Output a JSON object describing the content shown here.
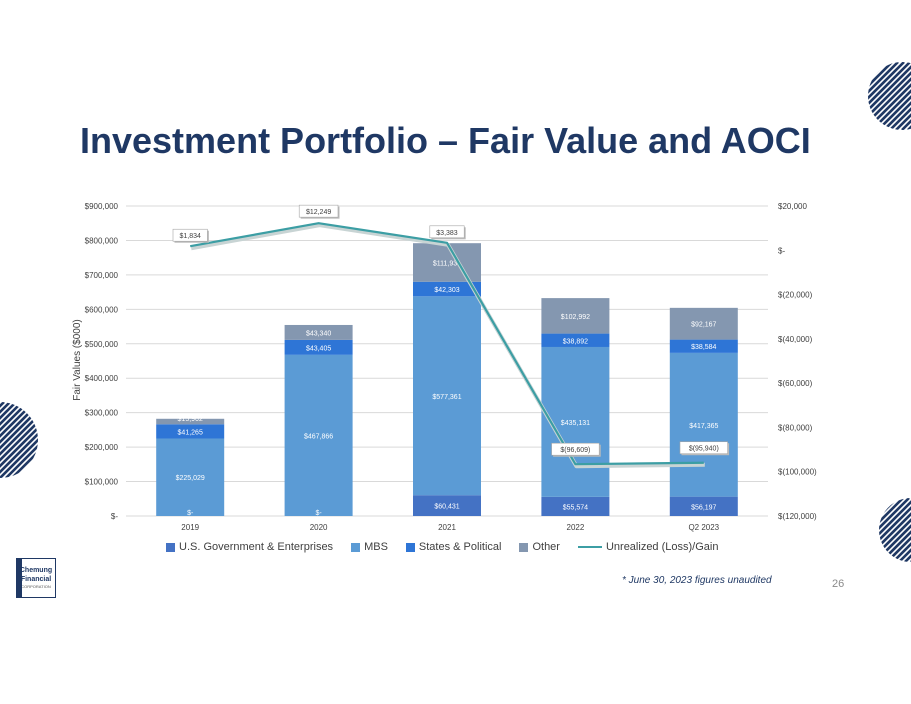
{
  "slide": {
    "title": "Investment Portfolio – Fair Value and AOCI",
    "footnote": "* June 30, 2023 figures unaudited",
    "page_number": "26",
    "logo_line1": "Chemung",
    "logo_line2": "Financial",
    "logo_line3": "CORPORATION"
  },
  "colors": {
    "title": "#1F3864",
    "us_gov": "#4472C4",
    "mbs": "#5B9BD5",
    "states": "#2E75D6",
    "other": "#8497B0",
    "line": "#3C9EA4",
    "accent_stripes": "#1F3864"
  },
  "chart_data": {
    "type": "bar",
    "stacked": true,
    "categories": [
      "2019",
      "2020",
      "2021",
      "2022",
      "Q2 2023"
    ],
    "ylabel": "Fair Values ($000)",
    "ylim": [
      0,
      900000
    ],
    "y2lim": [
      -120000,
      20000
    ],
    "y_ticks": [
      "$-",
      "$100,000",
      "$200,000",
      "$300,000",
      "$400,000",
      "$500,000",
      "$600,000",
      "$700,000",
      "$800,000",
      "$900,000"
    ],
    "y2_ticks": [
      "$(120,000)",
      "$(100,000)",
      "$(80,000)",
      "$(60,000)",
      "$(40,000)",
      "$(20,000)",
      "$-",
      "$20,000"
    ],
    "grid": true,
    "legend_position": "bottom",
    "series": [
      {
        "name": "U.S. Government & Enterprises",
        "values": [
          0,
          0,
          60431,
          55574,
          56197
        ],
        "labels": [
          "$-",
          "$-",
          "$60,431",
          "$55,574",
          "$56,197"
        ]
      },
      {
        "name": "MBS",
        "values": [
          225029,
          467866,
          577361,
          435131,
          417365
        ],
        "labels": [
          "$225,029",
          "$467,866",
          "$577,361",
          "$435,131",
          "$417,365"
        ]
      },
      {
        "name": "States & Political",
        "values": [
          41265,
          43405,
          42303,
          38892,
          38584
        ],
        "labels": [
          "$41,265",
          "$43,405",
          "$42,303",
          "$38,892",
          "$38,584"
        ]
      },
      {
        "name": "Other",
        "values": [
          15962,
          43340,
          111931,
          102992,
          92167
        ],
        "labels": [
          "$15,962",
          "$43,340",
          "$111,931",
          "$102,992",
          "$92,167"
        ]
      }
    ],
    "line_series": {
      "name": "Unrealized (Loss)/Gain",
      "axis": "secondary",
      "values": [
        1834,
        12249,
        3383,
        -96609,
        -95940
      ],
      "labels": [
        "$1,834",
        "$12,249",
        "$3,383",
        "$(96,609)",
        "$(95,940)"
      ]
    }
  }
}
